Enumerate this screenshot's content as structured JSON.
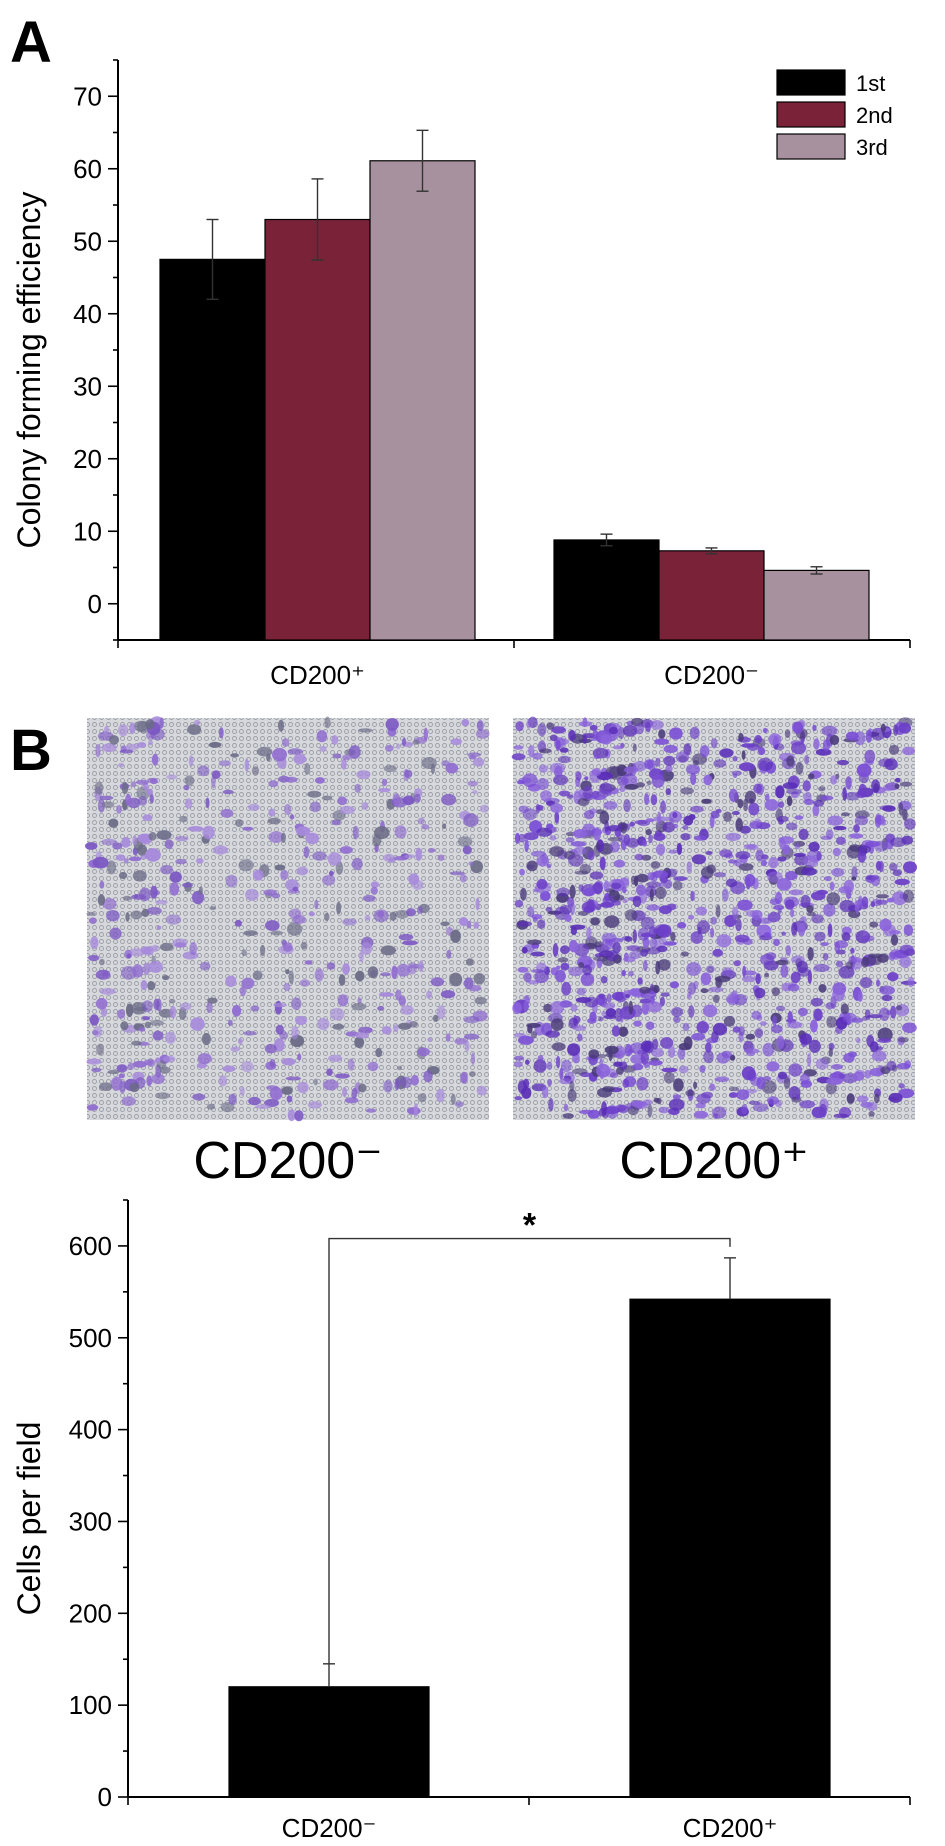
{
  "panel_labels": {
    "a": "A",
    "b": "B"
  },
  "micrograph_labels": [
    "CD200⁻",
    "CD200⁺"
  ],
  "chart_data": [
    {
      "type": "bar",
      "panel": "A",
      "ylabel": "Colony forming efficiency",
      "xlabel": "",
      "ylim": [
        -5,
        75
      ],
      "yticks": [
        0,
        10,
        20,
        30,
        40,
        50,
        60,
        70
      ],
      "categories": [
        "CD200⁺",
        "CD200⁻"
      ],
      "series": [
        {
          "name": "1st",
          "color": "#000000",
          "values": [
            47.5,
            8.8
          ],
          "errors": [
            5.5,
            0.8
          ]
        },
        {
          "name": "2nd",
          "color": "#7a2238",
          "values": [
            53.0,
            7.3
          ],
          "errors": [
            5.6,
            0.4
          ]
        },
        {
          "name": "3rd",
          "color": "#a8919e",
          "values": [
            61.1,
            4.6
          ],
          "errors": [
            4.2,
            0.5
          ]
        }
      ],
      "legend": "top-right",
      "grid": false
    },
    {
      "type": "bar",
      "panel": "B",
      "ylabel": "Cells per field",
      "xlabel": "",
      "ylim": [
        0,
        650
      ],
      "yticks": [
        0,
        100,
        200,
        300,
        400,
        500,
        600
      ],
      "categories": [
        "CD200⁻",
        "CD200⁺"
      ],
      "values": [
        120,
        542
      ],
      "errors": [
        25,
        45
      ],
      "color": "#000000",
      "significance": {
        "between": [
          0,
          1
        ],
        "y": 608,
        "label": "*"
      },
      "grid": false
    }
  ]
}
